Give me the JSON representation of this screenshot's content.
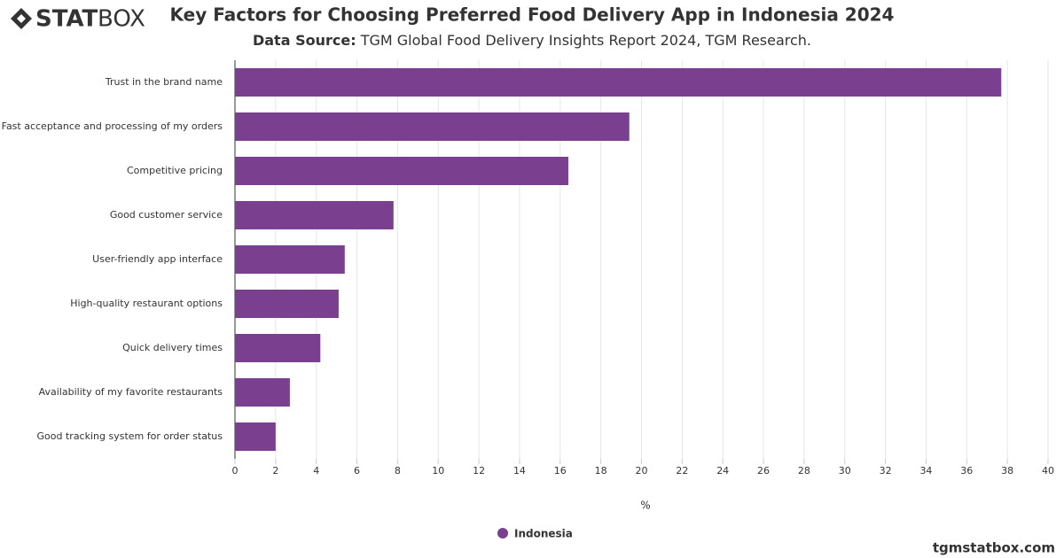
{
  "logo": {
    "bold": "STAT",
    "light": "BOX"
  },
  "footer": "tgmstatbox.com",
  "chart_data": {
    "type": "bar",
    "orientation": "horizontal",
    "title": "Key Factors for Choosing Preferred Food Delivery App in Indonesia 2024",
    "subtitle_label": "Data Source:",
    "subtitle": "TGM Global Food Delivery Insights Report 2024, TGM Research.",
    "x_label": "%",
    "categories": [
      "Trust in the brand name",
      "Fast acceptance and processing of my orders",
      "Competitive pricing",
      "Good customer service",
      "User-friendly app interface",
      "High-quality restaurant options",
      "Quick delivery times",
      "Availability of my favorite restaurants",
      "Good tracking system for order status"
    ],
    "series": [
      {
        "name": "Indonesia",
        "color": "#7b3f8f",
        "values": [
          37.7,
          19.4,
          16.4,
          7.8,
          5.4,
          5.1,
          4.2,
          2.7,
          2.0
        ]
      }
    ],
    "xlim": [
      0,
      40
    ],
    "xticks": [
      0,
      2,
      4,
      6,
      8,
      10,
      12,
      14,
      16,
      18,
      20,
      22,
      24,
      26,
      28,
      30,
      32,
      34,
      36,
      38,
      40
    ],
    "grid": true
  }
}
